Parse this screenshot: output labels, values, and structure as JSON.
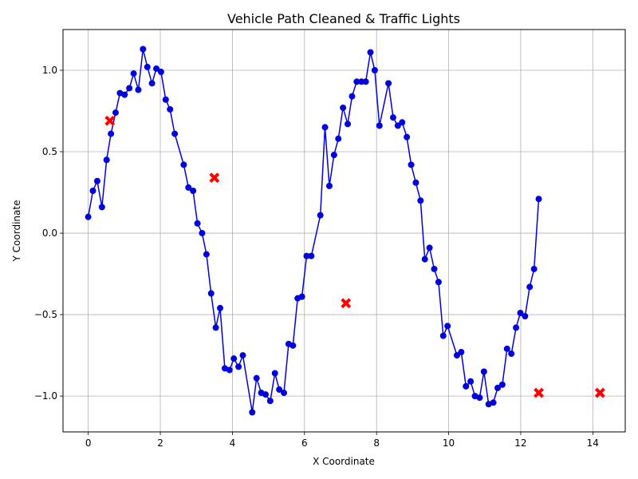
{
  "chart_data": {
    "type": "line",
    "title": "Vehicle Path Cleaned & Traffic Lights",
    "xlabel": "X Coordinate",
    "ylabel": "Y Coordinate",
    "xlim": [
      -0.7,
      14.9
    ],
    "ylim": [
      -1.22,
      1.25
    ],
    "x_ticks": [
      0,
      2,
      4,
      6,
      8,
      10,
      12,
      14
    ],
    "y_ticks": [
      -1.0,
      -0.5,
      0.0,
      0.5,
      1.0
    ],
    "x_tick_labels": [
      "0",
      "2",
      "4",
      "6",
      "8",
      "10",
      "12",
      "14"
    ],
    "y_tick_labels": [
      "−1.0",
      "−0.5",
      "0.0",
      "0.5",
      "1.0"
    ],
    "grid": true,
    "colors": {
      "path": "#0000dd",
      "traffic_lights": "#ff0000"
    },
    "series": [
      {
        "kind": "path",
        "marker": "circle",
        "x": [
          0.0,
          0.13,
          0.25,
          0.38,
          0.51,
          0.63,
          0.76,
          0.88,
          1.01,
          1.14,
          1.26,
          1.39,
          1.52,
          1.64,
          1.77,
          1.89,
          2.02,
          2.15,
          2.27,
          2.4,
          2.65,
          2.78,
          2.91,
          3.03,
          3.16,
          3.28,
          3.41,
          3.54,
          3.66,
          3.79,
          3.92,
          4.04,
          4.17,
          4.29,
          4.55,
          4.67,
          4.8,
          4.92,
          5.05,
          5.18,
          5.3,
          5.43,
          5.56,
          5.68,
          5.81,
          5.93,
          6.06,
          6.19,
          6.44,
          6.57,
          6.69,
          6.82,
          6.94,
          7.07,
          7.2,
          7.32,
          7.45,
          7.58,
          7.7,
          7.83,
          7.95,
          8.08,
          8.33,
          8.46,
          8.59,
          8.71,
          8.84,
          8.96,
          9.09,
          9.22,
          9.34,
          9.47,
          9.6,
          9.72,
          9.85,
          9.97,
          10.23,
          10.35,
          10.48,
          10.61,
          10.73,
          10.86,
          10.98,
          11.11,
          11.24,
          11.36,
          11.49,
          11.62,
          11.74,
          11.87,
          11.99,
          12.12,
          12.25,
          12.37,
          12.5
        ],
        "y": [
          0.1,
          0.26,
          0.32,
          0.16,
          0.45,
          0.61,
          0.74,
          0.86,
          0.85,
          0.89,
          0.98,
          0.88,
          1.13,
          1.02,
          0.92,
          1.01,
          0.99,
          0.82,
          0.76,
          0.61,
          0.42,
          0.28,
          0.26,
          0.06,
          0.0,
          -0.13,
          -0.37,
          -0.58,
          -0.46,
          -0.83,
          -0.84,
          -0.77,
          -0.82,
          -0.75,
          -1.1,
          -0.89,
          -0.98,
          -0.99,
          -1.03,
          -0.86,
          -0.96,
          -0.98,
          -0.68,
          -0.69,
          -0.4,
          -0.39,
          -0.14,
          -0.14,
          0.11,
          0.65,
          0.29,
          0.48,
          0.58,
          0.77,
          0.67,
          0.84,
          0.93,
          0.93,
          0.93,
          1.11,
          1.0,
          0.66,
          0.92,
          0.71,
          0.66,
          0.68,
          0.59,
          0.42,
          0.31,
          0.2,
          -0.16,
          -0.09,
          -0.22,
          -0.3,
          -0.63,
          -0.57,
          -0.75,
          -0.73,
          -0.94,
          -0.91,
          -1.0,
          -1.01,
          -0.85,
          -1.05,
          -1.04,
          -0.95,
          -0.93,
          -0.71,
          -0.74,
          -0.58,
          -0.49,
          -0.51,
          -0.33,
          -0.22,
          0.21
        ]
      },
      {
        "kind": "traffic_lights",
        "marker": "x-cross",
        "x": [
          0.6,
          3.5,
          7.15,
          12.5,
          14.2
        ],
        "y": [
          0.69,
          0.34,
          -0.43,
          -0.98,
          -0.98
        ]
      }
    ]
  }
}
